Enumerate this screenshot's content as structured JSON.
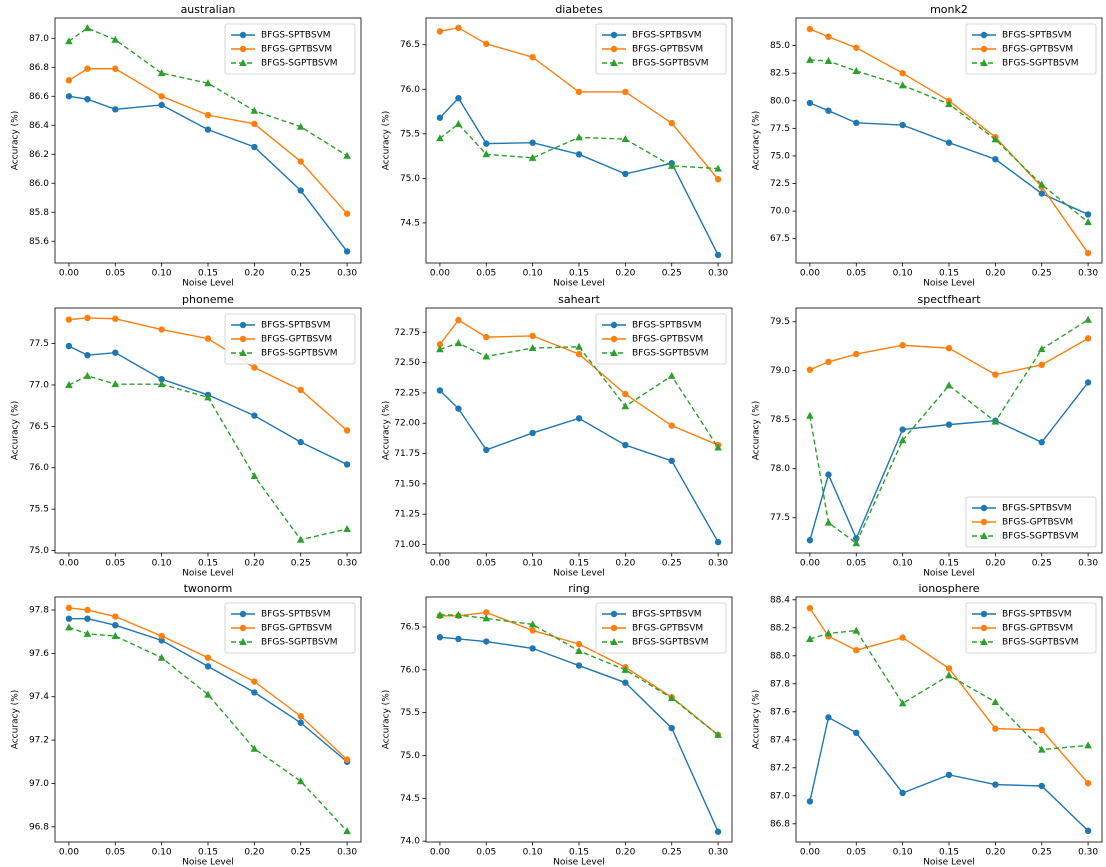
{
  "chart_data": [
    {
      "type": "line",
      "title": "australian",
      "xlabel": "Noise Level",
      "ylabel": "Accuracy (%)",
      "legend": "upper right",
      "x": [
        0,
        0.02,
        0.05,
        0.1,
        0.15,
        0.2,
        0.25,
        0.3
      ],
      "xlim": [
        -0.015,
        0.315
      ],
      "xticks": [
        {
          "value": 0,
          "label": "0.00"
        },
        {
          "value": 0.05,
          "label": "0.05"
        },
        {
          "value": 0.1,
          "label": "0.10"
        },
        {
          "value": 0.15,
          "label": "0.15"
        },
        {
          "value": 0.2,
          "label": "0.20"
        },
        {
          "value": 0.25,
          "label": "0.25"
        },
        {
          "value": 0.3,
          "label": "0.30"
        }
      ],
      "ylim": [
        85.45,
        87.14
      ],
      "yticks": [
        85.6,
        85.8,
        {
          "value": 86,
          "label": "86.0"
        },
        86.2,
        86.4,
        86.6,
        86.8,
        {
          "value": 87,
          "label": "87.0"
        }
      ],
      "series": [
        {
          "name": "BFGS-SPTBSVM",
          "color": "#1f77b4",
          "marker": "circle",
          "dash": false,
          "values": [
            86.6,
            86.58,
            86.51,
            86.54,
            86.37,
            86.25,
            85.95,
            85.53
          ]
        },
        {
          "name": "BFGS-GPTBSVM",
          "color": "#ff7f0e",
          "marker": "circle",
          "dash": false,
          "values": [
            86.71,
            86.79,
            86.79,
            86.6,
            86.47,
            86.41,
            86.15,
            85.79
          ]
        },
        {
          "name": "BFGS-SGPTBSVM",
          "color": "#2ca02c",
          "marker": "triangle",
          "dash": true,
          "values": [
            86.98,
            87.07,
            86.99,
            86.76,
            86.69,
            86.5,
            86.39,
            86.19
          ]
        }
      ]
    },
    {
      "type": "line",
      "title": "diabetes",
      "xlabel": "Noise Level",
      "ylabel": "Accuracy (%)",
      "legend": "upper right",
      "x": [
        0,
        0.02,
        0.05,
        0.1,
        0.15,
        0.2,
        0.25,
        0.3
      ],
      "xlim": [
        -0.015,
        0.315
      ],
      "xticks": [
        {
          "value": 0,
          "label": "0.00"
        },
        {
          "value": 0.05,
          "label": "0.05"
        },
        {
          "value": 0.1,
          "label": "0.10"
        },
        {
          "value": 0.15,
          "label": "0.15"
        },
        {
          "value": 0.2,
          "label": "0.20"
        },
        {
          "value": 0.25,
          "label": "0.25"
        },
        {
          "value": 0.3,
          "label": "0.30"
        }
      ],
      "ylim": [
        74.05,
        76.8
      ],
      "yticks": [
        74.5,
        {
          "value": 75,
          "label": "75.0"
        },
        75.5,
        {
          "value": 76,
          "label": "76.0"
        },
        76.5
      ],
      "series": [
        {
          "name": "BFGS-SPTBSVM",
          "color": "#1f77b4",
          "marker": "circle",
          "dash": false,
          "values": [
            75.68,
            75.9,
            75.39,
            75.4,
            75.27,
            75.05,
            75.17,
            74.14
          ]
        },
        {
          "name": "BFGS-GPTBSVM",
          "color": "#ff7f0e",
          "marker": "circle",
          "dash": false,
          "values": [
            76.65,
            76.69,
            76.51,
            76.36,
            75.97,
            75.97,
            75.62,
            74.99
          ]
        },
        {
          "name": "BFGS-SGPTBSVM",
          "color": "#2ca02c",
          "marker": "triangle",
          "dash": true,
          "values": [
            75.45,
            75.61,
            75.27,
            75.23,
            75.46,
            75.44,
            75.14,
            75.11
          ]
        }
      ]
    },
    {
      "type": "line",
      "title": "monk2",
      "xlabel": "Noise Level",
      "ylabel": "Accuracy (%)",
      "legend": "upper right",
      "x": [
        0,
        0.02,
        0.05,
        0.1,
        0.15,
        0.2,
        0.25,
        0.3
      ],
      "xlim": [
        -0.015,
        0.315
      ],
      "xticks": [
        {
          "value": 0,
          "label": "0.00"
        },
        {
          "value": 0.05,
          "label": "0.05"
        },
        {
          "value": 0.1,
          "label": "0.10"
        },
        {
          "value": 0.15,
          "label": "0.15"
        },
        {
          "value": 0.2,
          "label": "0.20"
        },
        {
          "value": 0.25,
          "label": "0.25"
        },
        {
          "value": 0.3,
          "label": "0.30"
        }
      ],
      "ylim": [
        65.3,
        87.5
      ],
      "yticks": [
        67.5,
        {
          "value": 70,
          "label": "70.0"
        },
        72.5,
        {
          "value": 75,
          "label": "75.0"
        },
        77.5,
        {
          "value": 80,
          "label": "80.0"
        },
        82.5,
        {
          "value": 85,
          "label": "85.0"
        }
      ],
      "series": [
        {
          "name": "BFGS-SPTBSVM",
          "color": "#1f77b4",
          "marker": "circle",
          "dash": false,
          "values": [
            79.8,
            79.1,
            78.0,
            77.8,
            76.2,
            74.7,
            71.6,
            69.7
          ]
        },
        {
          "name": "BFGS-GPTBSVM",
          "color": "#ff7f0e",
          "marker": "circle",
          "dash": false,
          "values": [
            86.5,
            85.8,
            84.8,
            82.5,
            80.0,
            76.7,
            72.2,
            66.2
          ]
        },
        {
          "name": "BFGS-SGPTBSVM",
          "color": "#2ca02c",
          "marker": "triangle",
          "dash": true,
          "values": [
            83.7,
            83.6,
            82.7,
            81.4,
            79.7,
            76.5,
            72.4,
            69.0
          ]
        }
      ]
    },
    {
      "type": "line",
      "title": "phoneme",
      "xlabel": "Noise Level",
      "ylabel": "Accuracy (%)",
      "legend": "upper right",
      "x": [
        0,
        0.02,
        0.05,
        0.1,
        0.15,
        0.2,
        0.25,
        0.3
      ],
      "xlim": [
        -0.015,
        0.315
      ],
      "xticks": [
        {
          "value": 0,
          "label": "0.00"
        },
        {
          "value": 0.05,
          "label": "0.05"
        },
        {
          "value": 0.1,
          "label": "0.10"
        },
        {
          "value": 0.15,
          "label": "0.15"
        },
        {
          "value": 0.2,
          "label": "0.20"
        },
        {
          "value": 0.25,
          "label": "0.25"
        },
        {
          "value": 0.3,
          "label": "0.30"
        }
      ],
      "ylim": [
        74.97,
        77.93
      ],
      "yticks": [
        {
          "value": 75,
          "label": "75.0"
        },
        75.5,
        {
          "value": 76,
          "label": "76.0"
        },
        76.5,
        {
          "value": 77,
          "label": "77.0"
        },
        77.5
      ],
      "series": [
        {
          "name": "BFGS-SPTBSVM",
          "color": "#1f77b4",
          "marker": "circle",
          "dash": false,
          "values": [
            77.47,
            77.36,
            77.39,
            77.07,
            76.88,
            76.63,
            76.31,
            76.04
          ]
        },
        {
          "name": "BFGS-GPTBSVM",
          "color": "#ff7f0e",
          "marker": "circle",
          "dash": false,
          "values": [
            77.79,
            77.81,
            77.8,
            77.67,
            77.56,
            77.21,
            76.94,
            76.45
          ]
        },
        {
          "name": "BFGS-SGPTBSVM",
          "color": "#2ca02c",
          "marker": "triangle",
          "dash": true,
          "values": [
            77.0,
            77.11,
            77.01,
            77.01,
            76.85,
            75.9,
            75.13,
            75.26
          ]
        }
      ]
    },
    {
      "type": "line",
      "title": "saheart",
      "xlabel": "Noise Level",
      "ylabel": "Accuracy (%)",
      "legend": "upper right",
      "x": [
        0,
        0.02,
        0.05,
        0.1,
        0.15,
        0.2,
        0.25,
        0.3
      ],
      "xlim": [
        -0.015,
        0.315
      ],
      "xticks": [
        {
          "value": 0,
          "label": "0.00"
        },
        {
          "value": 0.05,
          "label": "0.05"
        },
        {
          "value": 0.1,
          "label": "0.10"
        },
        {
          "value": 0.15,
          "label": "0.15"
        },
        {
          "value": 0.2,
          "label": "0.20"
        },
        {
          "value": 0.25,
          "label": "0.25"
        },
        {
          "value": 0.3,
          "label": "0.30"
        }
      ],
      "ylim": [
        70.93,
        72.95
      ],
      "yticks": [
        {
          "value": 71,
          "label": "71.00"
        },
        71.25,
        {
          "value": 71.5,
          "label": "71.50"
        },
        71.75,
        {
          "value": 72,
          "label": "72.00"
        },
        72.25,
        {
          "value": 72.5,
          "label": "72.50"
        },
        72.75
      ],
      "series": [
        {
          "name": "BFGS-SPTBSVM",
          "color": "#1f77b4",
          "marker": "circle",
          "dash": false,
          "values": [
            72.27,
            72.12,
            71.78,
            71.92,
            72.04,
            71.82,
            71.69,
            71.02
          ]
        },
        {
          "name": "BFGS-GPTBSVM",
          "color": "#ff7f0e",
          "marker": "circle",
          "dash": false,
          "values": [
            72.65,
            72.85,
            72.71,
            72.72,
            72.57,
            72.24,
            71.98,
            71.82
          ]
        },
        {
          "name": "BFGS-SGPTBSVM",
          "color": "#2ca02c",
          "marker": "triangle",
          "dash": true,
          "values": [
            72.61,
            72.66,
            72.55,
            72.62,
            72.63,
            72.14,
            72.39,
            71.8
          ]
        }
      ]
    },
    {
      "type": "line",
      "title": "spectfheart",
      "xlabel": "Noise Level",
      "ylabel": "Accuracy (%)",
      "legend": "lower right",
      "x": [
        0,
        0.02,
        0.05,
        0.1,
        0.15,
        0.2,
        0.25,
        0.3
      ],
      "xlim": [
        -0.015,
        0.315
      ],
      "xticks": [
        {
          "value": 0,
          "label": "0.00"
        },
        {
          "value": 0.05,
          "label": "0.05"
        },
        {
          "value": 0.1,
          "label": "0.10"
        },
        {
          "value": 0.15,
          "label": "0.15"
        },
        {
          "value": 0.2,
          "label": "0.20"
        },
        {
          "value": 0.25,
          "label": "0.25"
        },
        {
          "value": 0.3,
          "label": "0.30"
        }
      ],
      "ylim": [
        77.14,
        79.64
      ],
      "yticks": [
        77.5,
        {
          "value": 78,
          "label": "78.0"
        },
        78.5,
        {
          "value": 79,
          "label": "79.0"
        },
        79.5
      ],
      "series": [
        {
          "name": "BFGS-SPTBSVM",
          "color": "#1f77b4",
          "marker": "circle",
          "dash": false,
          "values": [
            77.27,
            77.94,
            77.29,
            78.4,
            78.45,
            78.49,
            78.27,
            78.88
          ]
        },
        {
          "name": "BFGS-GPTBSVM",
          "color": "#ff7f0e",
          "marker": "circle",
          "dash": false,
          "values": [
            79.01,
            79.09,
            79.17,
            79.26,
            79.23,
            78.96,
            79.06,
            79.33
          ]
        },
        {
          "name": "BFGS-SGPTBSVM",
          "color": "#2ca02c",
          "marker": "triangle",
          "dash": true,
          "values": [
            78.54,
            77.45,
            77.24,
            78.29,
            78.85,
            78.48,
            79.22,
            79.52
          ]
        }
      ]
    },
    {
      "type": "line",
      "title": "twonorm",
      "xlabel": "Noise Level",
      "ylabel": "Accuracy (%)",
      "legend": "upper right",
      "x": [
        0,
        0.02,
        0.05,
        0.1,
        0.15,
        0.2,
        0.25,
        0.3
      ],
      "xlim": [
        -0.015,
        0.315
      ],
      "xticks": [
        {
          "value": 0,
          "label": "0.00"
        },
        {
          "value": 0.05,
          "label": "0.05"
        },
        {
          "value": 0.1,
          "label": "0.10"
        },
        {
          "value": 0.15,
          "label": "0.15"
        },
        {
          "value": 0.2,
          "label": "0.20"
        },
        {
          "value": 0.25,
          "label": "0.25"
        },
        {
          "value": 0.3,
          "label": "0.30"
        }
      ],
      "ylim": [
        96.73,
        97.86
      ],
      "yticks": [
        96.8,
        {
          "value": 97,
          "label": "97.0"
        },
        97.2,
        97.4,
        97.6,
        97.8
      ],
      "series": [
        {
          "name": "BFGS-SPTBSVM",
          "color": "#1f77b4",
          "marker": "circle",
          "dash": false,
          "values": [
            97.76,
            97.76,
            97.73,
            97.66,
            97.54,
            97.42,
            97.28,
            97.1
          ]
        },
        {
          "name": "BFGS-GPTBSVM",
          "color": "#ff7f0e",
          "marker": "circle",
          "dash": false,
          "values": [
            97.81,
            97.8,
            97.77,
            97.68,
            97.58,
            97.47,
            97.31,
            97.11
          ]
        },
        {
          "name": "BFGS-SGPTBSVM",
          "color": "#2ca02c",
          "marker": "triangle",
          "dash": true,
          "values": [
            97.72,
            97.69,
            97.68,
            97.58,
            97.41,
            97.16,
            97.01,
            96.78
          ]
        }
      ]
    },
    {
      "type": "line",
      "title": "ring",
      "xlabel": "Noise Level",
      "ylabel": "Accuracy (%)",
      "legend": "upper right",
      "x": [
        0,
        0.02,
        0.05,
        0.1,
        0.15,
        0.2,
        0.25,
        0.3
      ],
      "xlim": [
        -0.015,
        0.315
      ],
      "xticks": [
        {
          "value": 0,
          "label": "0.00"
        },
        {
          "value": 0.05,
          "label": "0.05"
        },
        {
          "value": 0.1,
          "label": "0.10"
        },
        {
          "value": 0.15,
          "label": "0.15"
        },
        {
          "value": 0.2,
          "label": "0.20"
        },
        {
          "value": 0.25,
          "label": "0.25"
        },
        {
          "value": 0.3,
          "label": "0.30"
        }
      ],
      "ylim": [
        73.99,
        76.85
      ],
      "yticks": [
        {
          "value": 74,
          "label": "74.0"
        },
        74.5,
        {
          "value": 75,
          "label": "75.0"
        },
        75.5,
        {
          "value": 76,
          "label": "76.0"
        },
        76.5
      ],
      "series": [
        {
          "name": "BFGS-SPTBSVM",
          "color": "#1f77b4",
          "marker": "circle",
          "dash": false,
          "values": [
            76.38,
            76.36,
            76.33,
            76.25,
            76.05,
            75.85,
            75.32,
            74.11
          ]
        },
        {
          "name": "BFGS-GPTBSVM",
          "color": "#ff7f0e",
          "marker": "circle",
          "dash": false,
          "values": [
            76.63,
            76.63,
            76.67,
            76.46,
            76.3,
            76.03,
            75.68,
            75.24
          ]
        },
        {
          "name": "BFGS-SGPTBSVM",
          "color": "#2ca02c",
          "marker": "triangle",
          "dash": true,
          "values": [
            76.64,
            76.64,
            76.6,
            76.53,
            76.22,
            76.0,
            75.67,
            75.24
          ]
        }
      ]
    },
    {
      "type": "line",
      "title": "ionosphere",
      "xlabel": "Noise Level",
      "ylabel": "Accuracy (%)",
      "legend": "upper right",
      "x": [
        0,
        0.02,
        0.05,
        0.1,
        0.15,
        0.2,
        0.25,
        0.3
      ],
      "xlim": [
        -0.015,
        0.315
      ],
      "xticks": [
        {
          "value": 0,
          "label": "0.00"
        },
        {
          "value": 0.05,
          "label": "0.05"
        },
        {
          "value": 0.1,
          "label": "0.10"
        },
        {
          "value": 0.15,
          "label": "0.15"
        },
        {
          "value": 0.2,
          "label": "0.20"
        },
        {
          "value": 0.25,
          "label": "0.25"
        },
        {
          "value": 0.3,
          "label": "0.30"
        }
      ],
      "ylim": [
        86.67,
        88.42
      ],
      "yticks": [
        86.8,
        {
          "value": 87,
          "label": "87.0"
        },
        87.2,
        87.4,
        87.6,
        87.8,
        {
          "value": 88,
          "label": "88.0"
        },
        88.2,
        88.4
      ],
      "series": [
        {
          "name": "BFGS-SPTBSVM",
          "color": "#1f77b4",
          "marker": "circle",
          "dash": false,
          "values": [
            86.96,
            87.56,
            87.45,
            87.02,
            87.15,
            87.08,
            87.07,
            86.75
          ]
        },
        {
          "name": "BFGS-GPTBSVM",
          "color": "#ff7f0e",
          "marker": "circle",
          "dash": false,
          "values": [
            88.34,
            88.14,
            88.04,
            88.13,
            87.91,
            87.48,
            87.47,
            87.09
          ]
        },
        {
          "name": "BFGS-SGPTBSVM",
          "color": "#2ca02c",
          "marker": "triangle",
          "dash": true,
          "values": [
            88.12,
            88.16,
            88.18,
            87.66,
            87.86,
            87.67,
            87.33,
            87.36
          ]
        }
      ]
    }
  ]
}
